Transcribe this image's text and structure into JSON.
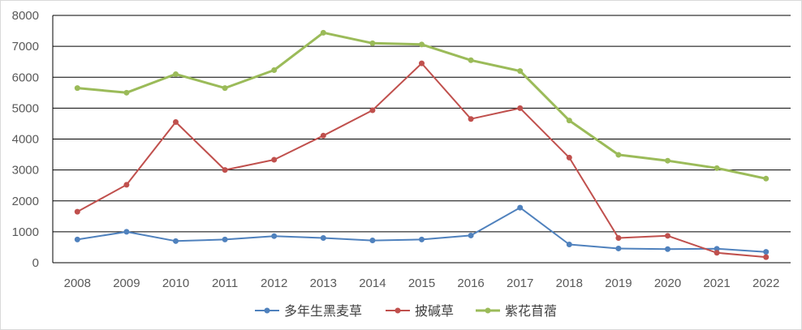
{
  "chart_data": {
    "type": "line",
    "title": "",
    "xlabel": "",
    "ylabel": "",
    "ylim": [
      0,
      8000
    ],
    "yticks": [
      0,
      1000,
      2000,
      3000,
      4000,
      5000,
      6000,
      7000,
      8000
    ],
    "grid": "horizontal",
    "legend_position": "bottom",
    "categories": [
      "2008",
      "2009",
      "2010",
      "2011",
      "2012",
      "2013",
      "2014",
      "2015",
      "2016",
      "2017",
      "2018",
      "2019",
      "2020",
      "2021",
      "2022"
    ],
    "series": [
      {
        "name": "多年生黑麦草",
        "color": "#4f81bd",
        "values": [
          750,
          1000,
          700,
          750,
          860,
          800,
          720,
          750,
          880,
          1780,
          590,
          460,
          440,
          450,
          350
        ]
      },
      {
        "name": "披碱草",
        "color": "#c0504d",
        "values": [
          1650,
          2520,
          4550,
          3000,
          3330,
          4110,
          4930,
          6450,
          4650,
          5000,
          3400,
          800,
          870,
          320,
          180
        ]
      },
      {
        "name": "紫花苜蓿",
        "color": "#9bbb59",
        "values": [
          5650,
          5500,
          6100,
          5650,
          6230,
          7440,
          7100,
          7060,
          6550,
          6200,
          4600,
          3490,
          3300,
          3060,
          2720
        ]
      }
    ]
  }
}
